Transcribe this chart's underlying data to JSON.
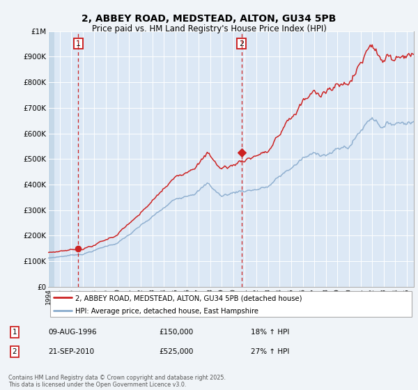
{
  "title": "2, ABBEY ROAD, MEDSTEAD, ALTON, GU34 5PB",
  "subtitle": "Price paid vs. HM Land Registry's House Price Index (HPI)",
  "title_fontsize": 10,
  "subtitle_fontsize": 8.5,
  "background_color": "#f0f4f8",
  "plot_bg_color": "#dce8f5",
  "grid_color": "#ffffff",
  "hatch_color": "#c5d8e8",
  "red_color": "#cc2222",
  "blue_color": "#88aacc",
  "sale1_yr": 1996.614,
  "sale2_yr": 2010.722,
  "sale1_value": 150000,
  "sale2_value": 525000,
  "xmin": 1994.0,
  "xmax": 2025.6,
  "ymin": 0,
  "ymax": 1000000,
  "yticks": [
    0,
    100000,
    200000,
    300000,
    400000,
    500000,
    600000,
    700000,
    800000,
    900000,
    1000000
  ],
  "ytick_labels": [
    "£0",
    "£100K",
    "£200K",
    "£300K",
    "£400K",
    "£500K",
    "£600K",
    "£700K",
    "£800K",
    "£900K",
    "£1M"
  ],
  "xticks": [
    1994,
    1995,
    1996,
    1997,
    1998,
    1999,
    2000,
    2001,
    2002,
    2003,
    2004,
    2005,
    2006,
    2007,
    2008,
    2009,
    2010,
    2011,
    2012,
    2013,
    2014,
    2015,
    2016,
    2017,
    2018,
    2019,
    2020,
    2021,
    2022,
    2023,
    2024,
    2025
  ],
  "legend_label_red": "2, ABBEY ROAD, MEDSTEAD, ALTON, GU34 5PB (detached house)",
  "legend_label_blue": "HPI: Average price, detached house, East Hampshire",
  "sale1_date_str": "09-AUG-1996",
  "sale1_price_str": "£150,000",
  "sale1_hpi_str": "18% ↑ HPI",
  "sale2_date_str": "21-SEP-2010",
  "sale2_price_str": "£525,000",
  "sale2_hpi_str": "27% ↑ HPI",
  "footer": "Contains HM Land Registry data © Crown copyright and database right 2025.\nThis data is licensed under the Open Government Licence v3.0."
}
